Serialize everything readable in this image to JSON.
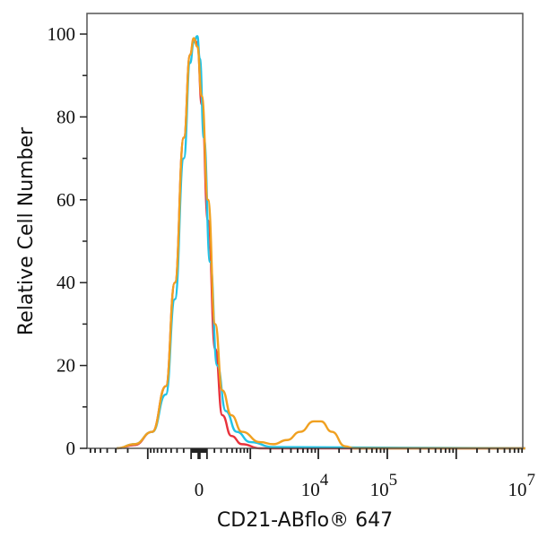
{
  "chart_data": {
    "type": "line",
    "title": "",
    "xlabel": "CD21-ABflo® 647",
    "ylabel": "Relative Cell Number",
    "x_scale": "biexponential",
    "xlim": [
      -7000,
      10000000
    ],
    "ylim": [
      0,
      100
    ],
    "grid": false,
    "y_ticks": [
      0,
      20,
      40,
      60,
      80,
      100
    ],
    "x_ticks": [
      {
        "value": 0,
        "base": "0",
        "exp": ""
      },
      {
        "value": 10000,
        "base": "10",
        "exp": "4"
      },
      {
        "value": 100000,
        "base": "10",
        "exp": "5"
      },
      {
        "value": 10000000,
        "base": "10",
        "exp": "7"
      }
    ],
    "series": [
      {
        "color": "#e8323c",
        "x": [
          -2900,
          -1590,
          -846,
          -504,
          -335,
          -198,
          -113,
          -67,
          -22,
          34,
          113,
          211,
          320,
          485,
          738,
          1406,
          10000000
        ],
        "y": [
          0,
          0.8,
          4,
          15,
          40,
          75,
          95,
          98.5,
          98,
          83,
          55,
          24,
          8,
          3,
          1,
          0,
          0
        ]
      },
      {
        "color": "#22c3e6",
        "x": [
          -2900,
          -1590,
          -846,
          -504,
          -335,
          -198,
          -113,
          -67,
          -22,
          10,
          60,
          140,
          240,
          380,
          600,
          1000,
          2220,
          10000000
        ],
        "y": [
          0,
          1,
          4,
          13,
          36,
          70,
          93,
          98,
          99.5,
          94,
          75,
          45,
          20,
          9,
          4,
          1.5,
          0.3,
          0
        ]
      },
      {
        "color": "#f0a020",
        "x": [
          -2900,
          -1590,
          -846,
          -504,
          -335,
          -198,
          -113,
          -67,
          -22,
          34,
          113,
          211,
          320,
          485,
          738,
          1406,
          2220,
          3500,
          5480,
          8580,
          10930,
          15700,
          24500,
          33000,
          10000000
        ],
        "y": [
          0,
          1,
          4,
          15,
          40,
          75,
          95,
          99,
          97,
          85,
          60,
          30,
          14,
          8,
          4,
          1.5,
          1,
          2,
          4,
          6.5,
          6.5,
          4,
          0.5,
          0,
          0
        ]
      }
    ]
  }
}
